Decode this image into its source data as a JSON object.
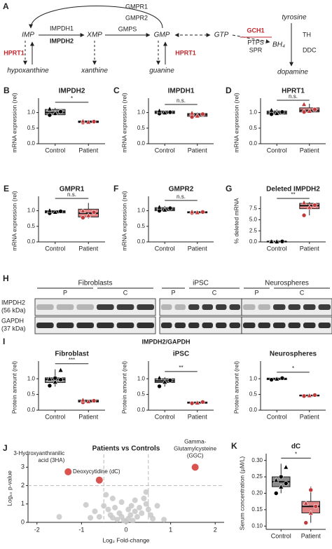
{
  "pathway": {
    "panel": "A",
    "gmpr1": "GMPR1",
    "gmpr2": "GMPR2",
    "impdh1": "IMPDH1",
    "impdh2": "IMPDH2",
    "gmps": "GMPS",
    "imp": "IMP",
    "xmp": "XMP",
    "gmp": "GMP",
    "gtp": "GTP",
    "gch1": "GCH1",
    "ptps": "PTPS",
    "spr": "SPR",
    "bh4": "BH₄",
    "tyrosine": "tyrosine",
    "th": "TH",
    "ddc": "DDC",
    "dopamine": "dopamine",
    "hprt1_left": "HPRT1",
    "hprt1_right": "HPRT1",
    "hypoxanthine": "hypoxanthine",
    "xanthine": "xanthine",
    "guanine": "guanine"
  },
  "blot": {
    "panel": "H",
    "groups": [
      {
        "name": "Fibroblasts",
        "lanes": [
          "P",
          "C"
        ]
      },
      {
        "name": "iPSC",
        "lanes": [
          "P",
          "C"
        ]
      },
      {
        "name": "Neurospheres",
        "lanes": [
          "P",
          "C"
        ]
      }
    ],
    "rows": [
      [
        "IMPDH2",
        "(56 kDa)"
      ],
      [
        "GAPDH",
        "(37 kDa)"
      ]
    ]
  },
  "panel_I": {
    "panel": "I",
    "title": "IMPDH2/GAPDH"
  },
  "chart_data": [
    {
      "type": "box",
      "panel": "B",
      "title": "IMPDH2",
      "ylabel": "mRNA expression (rel)",
      "categories": [
        "Control",
        "Patient"
      ],
      "annotation": "*",
      "ylim": [
        0,
        1.35
      ],
      "yticks": [
        {
          "value": 0,
          "label": "0.0"
        },
        {
          "value": 0.5,
          "label": "0.5"
        },
        {
          "value": 1,
          "label": "1.0"
        }
      ],
      "boxes": [
        {
          "min": 0.9,
          "q1": 0.93,
          "median": 1.0,
          "q3": 1.1,
          "max": 1.15,
          "points": [
            0.92,
            0.98,
            1.03,
            1.12
          ],
          "color": "#8c8c8c",
          "point_color": "#000000"
        },
        {
          "min": 0.67,
          "q1": 0.68,
          "median": 0.7,
          "q3": 0.73,
          "max": 0.74,
          "points": [
            0.68,
            0.7,
            0.71,
            0.73
          ],
          "color": "#e08486",
          "point_color": "#c0393b"
        }
      ]
    },
    {
      "type": "box",
      "panel": "C",
      "title": "IMPDH1",
      "ylabel": "mRNA expression (rel)",
      "categories": [
        "Control",
        "Patient"
      ],
      "annotation": "n.s.",
      "ylim": [
        0,
        1.35
      ],
      "yticks": [
        {
          "value": 0,
          "label": "0.0"
        },
        {
          "value": 0.5,
          "label": "0.5"
        },
        {
          "value": 1,
          "label": "1.0"
        }
      ],
      "boxes": [
        {
          "min": 0.95,
          "q1": 0.97,
          "median": 1.0,
          "q3": 1.05,
          "max": 1.08,
          "points": [
            0.97,
            1.0,
            1.01,
            1.06
          ],
          "color": "#8c8c8c",
          "point_color": "#000000"
        },
        {
          "min": 0.85,
          "q1": 0.88,
          "median": 0.93,
          "q3": 0.97,
          "max": 1.0,
          "points": [
            0.86,
            0.9,
            0.95,
            0.99
          ],
          "color": "#e08486",
          "point_color": "#c0393b"
        }
      ]
    },
    {
      "type": "box",
      "panel": "D",
      "title": "HPRT1",
      "ylabel": "mRNA expression (rel)",
      "categories": [
        "Control",
        "Patient"
      ],
      "annotation": "n.s.",
      "ylim": [
        0,
        1.35
      ],
      "yticks": [
        {
          "value": 0,
          "label": "0.0"
        },
        {
          "value": 0.5,
          "label": "0.5"
        },
        {
          "value": 1,
          "label": "1.0"
        }
      ],
      "boxes": [
        {
          "min": 0.93,
          "q1": 0.95,
          "median": 1.0,
          "q3": 1.05,
          "max": 1.1,
          "points": [
            0.95,
            0.98,
            1.02,
            1.08
          ],
          "color": "#8c8c8c",
          "point_color": "#000000"
        },
        {
          "min": 1.0,
          "q1": 1.02,
          "median": 1.07,
          "q3": 1.15,
          "max": 1.28,
          "points": [
            1.02,
            1.05,
            1.1,
            1.27
          ],
          "color": "#e08486",
          "point_color": "#c0393b"
        }
      ]
    },
    {
      "type": "box",
      "panel": "E",
      "title": "GMPR1",
      "ylabel": "mRNA expression (rel)",
      "categories": [
        "Control",
        "Patient"
      ],
      "annotation": "n.s.",
      "ylim": [
        0,
        1.35
      ],
      "yticks": [
        {
          "value": 0,
          "label": "0.0"
        },
        {
          "value": 0.5,
          "label": "0.5"
        },
        {
          "value": 1,
          "label": "1.0"
        }
      ],
      "boxes": [
        {
          "min": 0.9,
          "q1": 0.93,
          "median": 0.97,
          "q3": 1.0,
          "max": 1.02,
          "points": [
            0.92,
            0.96,
            0.98,
            1.01
          ],
          "color": "#8c8c8c",
          "point_color": "#000000"
        },
        {
          "min": 0.75,
          "q1": 0.8,
          "median": 0.92,
          "q3": 1.05,
          "max": 1.25,
          "points": [
            0.78,
            0.85,
            0.95,
            1.0
          ],
          "color": "#e08486",
          "point_color": "#c0393b"
        }
      ]
    },
    {
      "type": "box",
      "panel": "F",
      "title": "GMPR2",
      "ylabel": "mRNA expression (rel)",
      "categories": [
        "Control",
        "Patient"
      ],
      "annotation": "n.s.",
      "ylim": [
        0,
        1.35
      ],
      "yticks": [
        {
          "value": 0,
          "label": "0.0"
        },
        {
          "value": 0.5,
          "label": "0.5"
        },
        {
          "value": 1,
          "label": "1.0"
        }
      ],
      "boxes": [
        {
          "min": 0.98,
          "q1": 1.0,
          "median": 1.05,
          "q3": 1.1,
          "max": 1.15,
          "points": [
            1.0,
            1.03,
            1.08,
            1.12
          ],
          "color": "#8c8c8c",
          "point_color": "#000000"
        },
        {
          "min": 0.92,
          "q1": 0.93,
          "median": 0.95,
          "q3": 0.97,
          "max": 0.98,
          "points": [
            0.93,
            0.95,
            0.96,
            0.97
          ],
          "color": "#e08486",
          "point_color": "#c0393b"
        }
      ]
    },
    {
      "type": "box",
      "panel": "G",
      "title": "Deleted IMPDH2",
      "ylabel": "% deleted mRNA",
      "categories": [
        "Control",
        "Patient"
      ],
      "annotation": "**",
      "ylim": [
        0,
        9.5
      ],
      "yticks": [
        {
          "value": 0,
          "label": "0.0"
        },
        {
          "value": 2.5,
          "label": "2.5"
        },
        {
          "value": 5,
          "label": "5.0"
        },
        {
          "value": 7.5,
          "label": "7.5"
        }
      ],
      "boxes": [
        {
          "min": 0.05,
          "q1": 0.08,
          "median": 0.1,
          "q3": 0.12,
          "max": 0.15,
          "points": [
            0.07,
            0.1,
            0.11,
            0.13
          ],
          "color": "#8c8c8c",
          "point_color": "#000000"
        },
        {
          "min": 6.0,
          "q1": 7.5,
          "median": 8.2,
          "q3": 8.7,
          "max": 9.0,
          "points": [
            6.0,
            7.8,
            8.3,
            8.9
          ],
          "color": "#e08486",
          "point_color": "#c0393b"
        }
      ]
    },
    {
      "type": "box",
      "title": "Fibroblast",
      "ylabel": "Protein amount (rel)",
      "categories": [
        "Control",
        "Patient"
      ],
      "annotation": "***",
      "ylim": [
        0,
        1.45
      ],
      "yticks": [
        {
          "value": 0,
          "label": "0.0"
        },
        {
          "value": 0.5,
          "label": "0.5"
        },
        {
          "value": 1,
          "label": "1.0"
        }
      ],
      "boxes": [
        {
          "min": 0.75,
          "q1": 0.88,
          "median": 0.98,
          "q3": 1.03,
          "max": 1.3,
          "points": [
            0.78,
            0.9,
            0.97,
            1.0,
            1.02,
            1.28
          ],
          "color": "#8c8c8c",
          "point_color": "#000000"
        },
        {
          "min": 0.24,
          "q1": 0.26,
          "median": 0.28,
          "q3": 0.32,
          "max": 0.35,
          "points": [
            0.25,
            0.28,
            0.3,
            0.33
          ],
          "color": "#e08486",
          "point_color": "#c0393b"
        }
      ]
    },
    {
      "type": "box",
      "title": "iPSC",
      "ylabel": "Protein amount (rel)",
      "categories": [
        "Control",
        "Patient"
      ],
      "annotation": "**",
      "ylim": [
        0,
        1.45
      ],
      "yticks": [
        {
          "value": 0,
          "label": "0.0"
        },
        {
          "value": 0.5,
          "label": "0.5"
        },
        {
          "value": 1,
          "label": "1.0"
        }
      ],
      "boxes": [
        {
          "min": 0.75,
          "q1": 0.88,
          "median": 0.93,
          "q3": 1.0,
          "max": 1.05,
          "points": [
            0.76,
            0.9,
            0.95,
            1.03
          ],
          "color": "#8c8c8c",
          "point_color": "#000000"
        },
        {
          "min": 0.21,
          "q1": 0.22,
          "median": 0.24,
          "q3": 0.26,
          "max": 0.27,
          "points": [
            0.22,
            0.24,
            0.26
          ],
          "color": "#e08486",
          "point_color": "#c0393b"
        }
      ]
    },
    {
      "type": "box",
      "title": "Neurospheres",
      "ylabel": "Protein amount (rel)",
      "categories": [
        "Control",
        "Patient"
      ],
      "annotation": "*",
      "ylim": [
        0,
        1.45
      ],
      "yticks": [
        {
          "value": 0,
          "label": "0.0"
        },
        {
          "value": 0.5,
          "label": "0.5"
        },
        {
          "value": 1,
          "label": "1.0"
        }
      ],
      "boxes": [
        {
          "min": 0.95,
          "q1": 0.97,
          "median": 1.0,
          "q3": 1.02,
          "max": 1.03,
          "points": [
            0.97,
            1.0,
            1.02
          ],
          "color": "#8c8c8c",
          "point_color": "#000000"
        },
        {
          "min": 0.45,
          "q1": 0.45,
          "median": 0.47,
          "q3": 0.48,
          "max": 0.48,
          "points": [
            0.45,
            0.47,
            0.48
          ],
          "color": "#e08486",
          "point_color": "#c0393b"
        }
      ]
    },
    {
      "type": "scatter",
      "panel": "J",
      "title": "Patients vs Controls",
      "xlabel": "Log₂ Fold-change",
      "ylabel": "Log₁₀ p-value",
      "xlim": [
        -2.2,
        2.2
      ],
      "ylim": [
        0,
        3.7
      ],
      "xticks": [
        -2,
        -1,
        0,
        1,
        2
      ],
      "yticks": [
        0,
        1,
        2,
        3
      ],
      "thresholds": {
        "x": [
          -0.5,
          0.5
        ],
        "y": 2
      },
      "series": [
        {
          "color": "#c8c8c8",
          "x": [
            -0.9,
            -0.7,
            -0.5,
            -0.45,
            -0.4,
            -0.35,
            -0.3,
            -0.25,
            -0.2,
            -0.15,
            -0.1,
            -0.05,
            0,
            0.05,
            0.1,
            0.15,
            0.2,
            0.25,
            0.3,
            0.35,
            0.4,
            0.45,
            0.5,
            0.55,
            0.6,
            0.7,
            0.85,
            -0.6,
            -0.8,
            -1.5,
            -0.1,
            0.2,
            -0.3,
            0.05,
            0.45,
            0.12
          ],
          "y": [
            0.95,
            0.6,
            0.9,
            1.5,
            0.7,
            0.4,
            0.25,
            0.8,
            0.15,
            0.5,
            0.3,
            0.1,
            0.05,
            0.2,
            0.4,
            0.1,
            0.6,
            0.3,
            0.8,
            0.5,
            1.3,
            1.0,
            0.7,
            0.4,
            0.2,
            0.9,
            0.15,
            0.3,
            0.25,
            0.3,
            1.1,
            1.2,
            1.3,
            0.7,
            1.65,
            0.9
          ]
        },
        {
          "color": "#d9534f",
          "x": [
            -1.3,
            -0.6,
            1.55
          ],
          "y": [
            2.75,
            2.3,
            3.0
          ],
          "labels": [
            [
              "3-Hydroxyanthranilic",
              "acid (3HA)"
            ],
            [
              "Deoxycytidine (dC)"
            ],
            [
              "Gamma-",
              "Glutamylcysteine",
              "(GGC)"
            ]
          ]
        }
      ]
    },
    {
      "type": "box",
      "panel": "K",
      "title": "dC",
      "ylabel": "Serum concentration (µM/L)",
      "categories": [
        "Control",
        "Patient"
      ],
      "annotation": "*",
      "ylim": [
        0.09,
        0.31
      ],
      "yticks": [
        {
          "value": 0.1,
          "label": "0.10"
        },
        {
          "value": 0.15,
          "label": "0.15"
        },
        {
          "value": 0.2,
          "label": "0.20"
        },
        {
          "value": 0.25,
          "label": "0.25"
        },
        {
          "value": 0.3,
          "label": "0.30"
        }
      ],
      "boxes": [
        {
          "min": 0.2,
          "q1": 0.22,
          "median": 0.235,
          "q3": 0.25,
          "max": 0.29,
          "points": [
            0.2,
            0.22,
            0.23,
            0.24,
            0.25,
            0.28
          ],
          "color": "#8c8c8c",
          "point_color": "#000000"
        },
        {
          "min": 0.11,
          "q1": 0.14,
          "median": 0.16,
          "q3": 0.175,
          "max": 0.22,
          "points": [
            0.11,
            0.14,
            0.16,
            0.17,
            0.21
          ],
          "color": "#e08486",
          "point_color": "#c0393b"
        }
      ]
    }
  ]
}
